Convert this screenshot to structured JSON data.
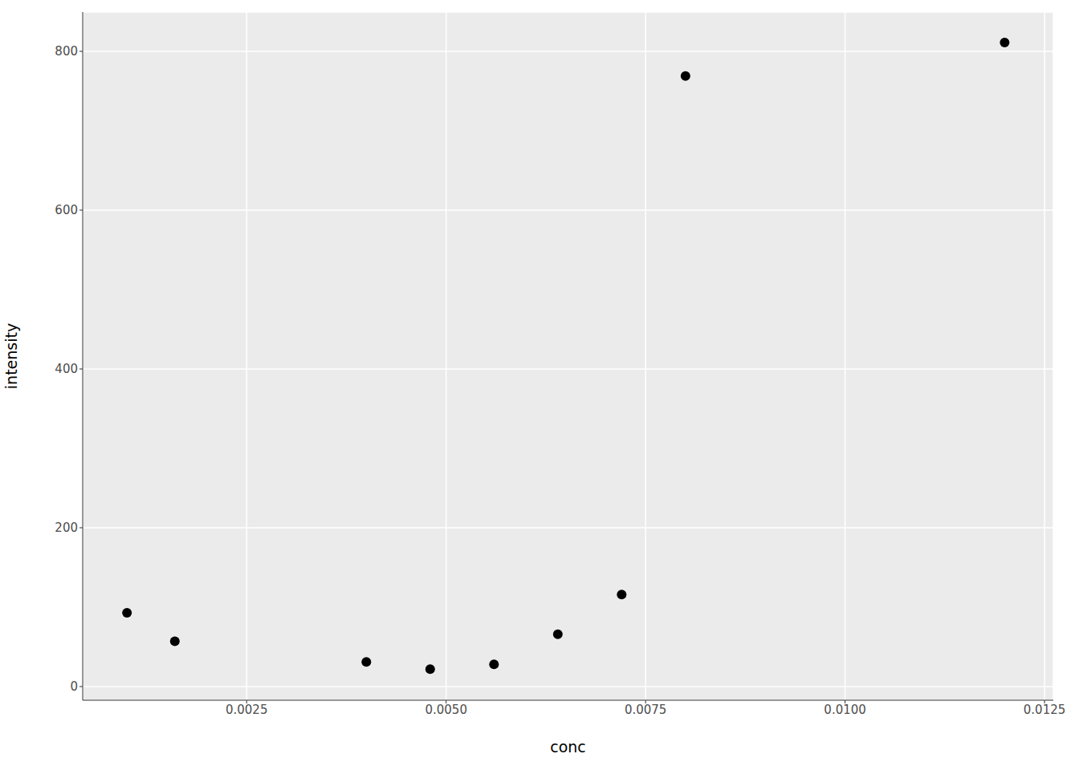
{
  "chart_data": {
    "type": "scatter",
    "x_label": "conc",
    "y_label": "intensity",
    "x": [
      0.001,
      0.0016,
      0.004,
      0.0048,
      0.0056,
      0.0064,
      0.0072,
      0.008,
      0.012
    ],
    "values": [
      93,
      57,
      31,
      22,
      28,
      66,
      116,
      769,
      811
    ],
    "color": "#000000",
    "xlim": [
      0.000445,
      0.01261
    ],
    "ylim": [
      -17.2,
      849.5
    ],
    "xticks": [
      0.0025,
      {
        "value": 0.005,
        "label": "0.0050"
      },
      0.0075,
      {
        "value": 0.01,
        "label": "0.0100"
      },
      0.0125
    ],
    "yticks": [
      0,
      200,
      400,
      600,
      800
    ],
    "grid": true
  }
}
